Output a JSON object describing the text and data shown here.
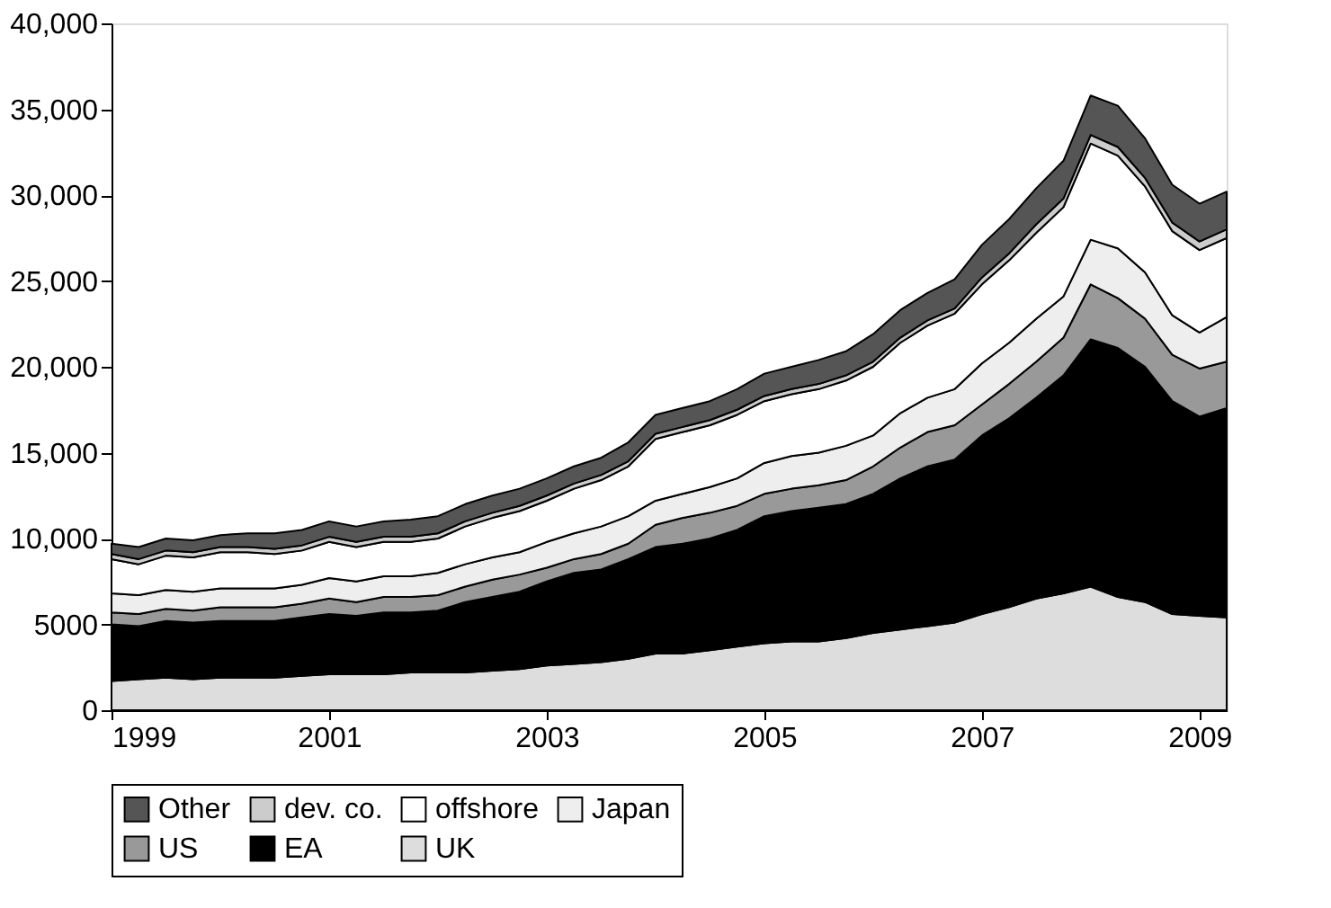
{
  "chart_data": {
    "type": "area",
    "stacked": true,
    "legend": "bottom",
    "grid": false,
    "x": [
      1999,
      1999.25,
      1999.5,
      1999.75,
      2000,
      2000.25,
      2000.5,
      2000.75,
      2001,
      2001.25,
      2001.5,
      2001.75,
      2002,
      2002.25,
      2002.5,
      2002.75,
      2003,
      2003.25,
      2003.5,
      2003.75,
      2004,
      2004.25,
      2004.5,
      2004.75,
      2005,
      2005.25,
      2005.5,
      2005.75,
      2006,
      2006.25,
      2006.5,
      2006.75,
      2007,
      2007.25,
      2007.5,
      2007.75,
      2008,
      2008.25,
      2008.5,
      2008.75,
      2009,
      2009.25
    ],
    "xlim": [
      1999,
      2009.25
    ],
    "xticks": [
      1999,
      2001,
      2003,
      2005,
      2007,
      2009
    ],
    "ylim": [
      0,
      40000
    ],
    "yticks": [
      {
        "value": 0,
        "label": "0"
      },
      {
        "value": 5000,
        "label": "5000"
      },
      {
        "value": 10000,
        "label": "10,000"
      },
      {
        "value": 15000,
        "label": "15,000"
      },
      {
        "value": 20000,
        "label": "20,000"
      },
      {
        "value": 25000,
        "label": "25,000"
      },
      {
        "value": 30000,
        "label": "30,000"
      },
      {
        "value": 35000,
        "label": "35,000"
      },
      {
        "value": 40000,
        "label": "40,000"
      }
    ],
    "series": [
      {
        "name": "UK",
        "color": "#dddddd",
        "values": [
          1700,
          1800,
          1900,
          1800,
          1900,
          1900,
          1900,
          2000,
          2100,
          2100,
          2100,
          2200,
          2200,
          2200,
          2300,
          2400,
          2600,
          2700,
          2800,
          3000,
          3300,
          3300,
          3500,
          3700,
          3900,
          4000,
          4000,
          4200,
          4500,
          4700,
          4900,
          5100,
          5600,
          6000,
          6500,
          6800,
          7200,
          6600,
          6300,
          5600,
          5500,
          5400
        ]
      },
      {
        "name": "EA",
        "color": "#000000",
        "values": [
          3300,
          3100,
          3300,
          3300,
          3300,
          3300,
          3300,
          3400,
          3500,
          3400,
          3600,
          3500,
          3600,
          4100,
          4300,
          4500,
          4900,
          5300,
          5400,
          5800,
          6200,
          6400,
          6500,
          6800,
          7400,
          7600,
          7800,
          7800,
          8100,
          8800,
          9300,
          9500,
          10400,
          11000,
          11700,
          12700,
          14400,
          14500,
          13700,
          12400,
          11600,
          12200
        ]
      },
      {
        "name": "US",
        "color": "#999999",
        "values": [
          700,
          700,
          700,
          700,
          800,
          800,
          800,
          800,
          900,
          800,
          900,
          900,
          900,
          900,
          1000,
          1000,
          800,
          800,
          900,
          900,
          1300,
          1500,
          1500,
          1400,
          1300,
          1300,
          1300,
          1400,
          1600,
          1800,
          2000,
          2000,
          1800,
          2000,
          2100,
          2200,
          3200,
          2900,
          2800,
          2700,
          2800,
          2700
        ]
      },
      {
        "name": "Japan",
        "color": "#eeeeee",
        "values": [
          1100,
          1100,
          1100,
          1100,
          1100,
          1100,
          1100,
          1100,
          1200,
          1200,
          1200,
          1200,
          1300,
          1300,
          1300,
          1300,
          1500,
          1500,
          1600,
          1600,
          1400,
          1400,
          1500,
          1600,
          1800,
          1900,
          1900,
          2000,
          1800,
          2000,
          2000,
          2100,
          2400,
          2400,
          2500,
          2400,
          2600,
          2900,
          2700,
          2300,
          2100,
          2600
        ]
      },
      {
        "name": "offshore",
        "color": "#ffffff",
        "values": [
          2000,
          1800,
          2000,
          2000,
          2100,
          2100,
          2000,
          2000,
          2100,
          2000,
          2000,
          2000,
          2000,
          2200,
          2300,
          2400,
          2400,
          2600,
          2700,
          2900,
          3600,
          3600,
          3600,
          3700,
          3600,
          3600,
          3700,
          3800,
          4000,
          4100,
          4200,
          4400,
          4600,
          4800,
          5000,
          5200,
          5600,
          5400,
          5000,
          4900,
          4800,
          4600
        ]
      },
      {
        "name": "dev. co.",
        "color": "#cccccc",
        "values": [
          300,
          300,
          300,
          300,
          300,
          300,
          300,
          300,
          300,
          300,
          300,
          300,
          300,
          300,
          300,
          300,
          300,
          300,
          300,
          300,
          300,
          300,
          300,
          300,
          300,
          300,
          300,
          300,
          300,
          300,
          300,
          300,
          400,
          400,
          500,
          500,
          500,
          500,
          500,
          500,
          500,
          500
        ]
      },
      {
        "name": "Other",
        "color": "#555555",
        "values": [
          600,
          700,
          700,
          700,
          700,
          800,
          900,
          900,
          900,
          900,
          900,
          1000,
          1000,
          1000,
          1000,
          1000,
          1000,
          1000,
          1000,
          1100,
          1100,
          1100,
          1100,
          1200,
          1300,
          1300,
          1400,
          1400,
          1600,
          1600,
          1600,
          1700,
          1900,
          2000,
          2100,
          2200,
          2300,
          2400,
          2300,
          2200,
          2200,
          2200
        ]
      }
    ]
  }
}
